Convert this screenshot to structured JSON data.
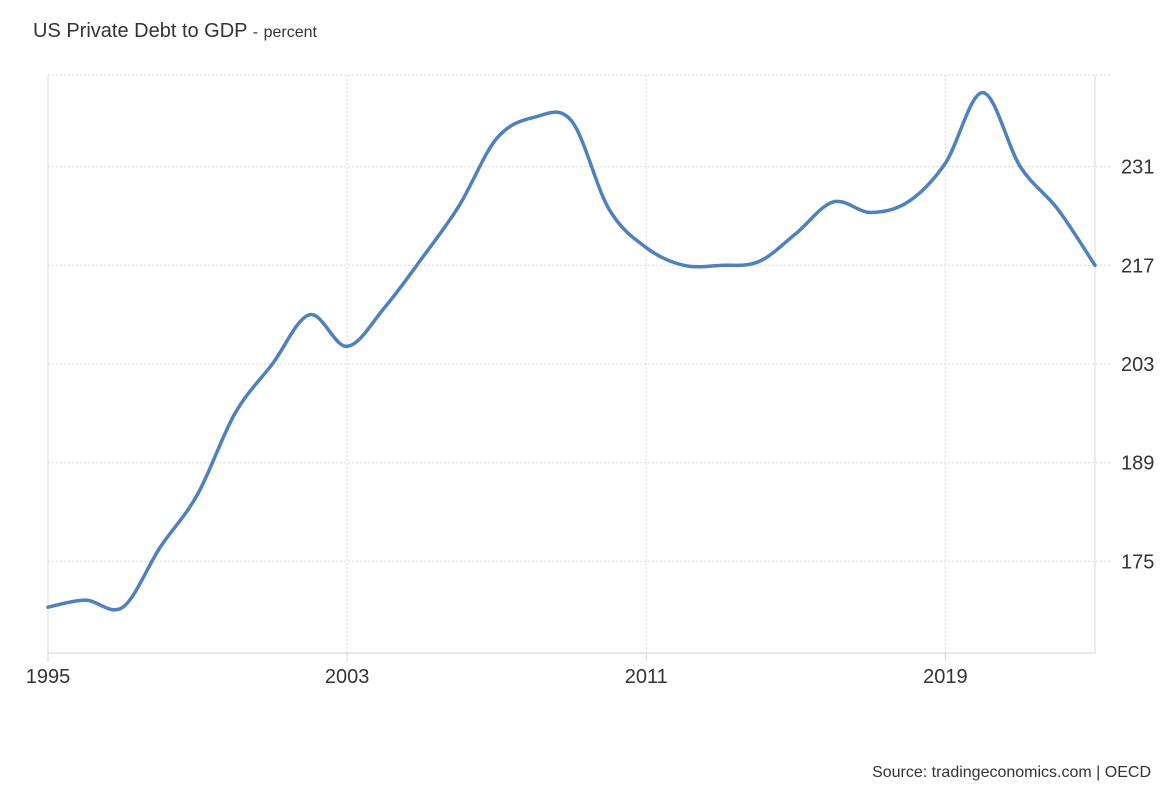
{
  "header": {
    "title": "US Private Debt to GDP",
    "separator": "-",
    "unit": "percent"
  },
  "footer": {
    "source": "Source: tradingeconomics.com | OECD"
  },
  "colors": {
    "line": "#4f81bd",
    "grid": "#d9d9d9",
    "axis": "#ccd6eb",
    "text": "#333333"
  },
  "chart_data": {
    "type": "line",
    "title": "US Private Debt to GDP",
    "xlabel": "",
    "ylabel": "",
    "x_ticks": [
      "1995",
      "2003",
      "2011",
      "2019"
    ],
    "y_ticks": [
      175,
      189,
      203,
      217,
      231
    ],
    "y_axis_side": "right",
    "xlim": [
      1995,
      2023
    ],
    "ylim": [
      162,
      244
    ],
    "grid": true,
    "series": [
      {
        "x": [
          1995,
          1996,
          1997,
          1998,
          1999,
          2000,
          2001,
          2002,
          2003,
          2004,
          2005,
          2006,
          2007,
          2008,
          2009,
          2010,
          2011,
          2012,
          2013,
          2014,
          2015,
          2016,
          2017,
          2018,
          2019,
          2020,
          2021,
          2022,
          2023
        ],
        "y": [
          168.5,
          169.5,
          168.5,
          177.0,
          184.5,
          196.0,
          203.0,
          210.0,
          205.5,
          211.0,
          218.0,
          225.5,
          235.0,
          238.0,
          237.5,
          225.0,
          219.5,
          217.0,
          217.0,
          217.5,
          221.5,
          226.0,
          224.5,
          226.0,
          231.5,
          241.5,
          231.0,
          225.0,
          217.0
        ]
      }
    ]
  }
}
